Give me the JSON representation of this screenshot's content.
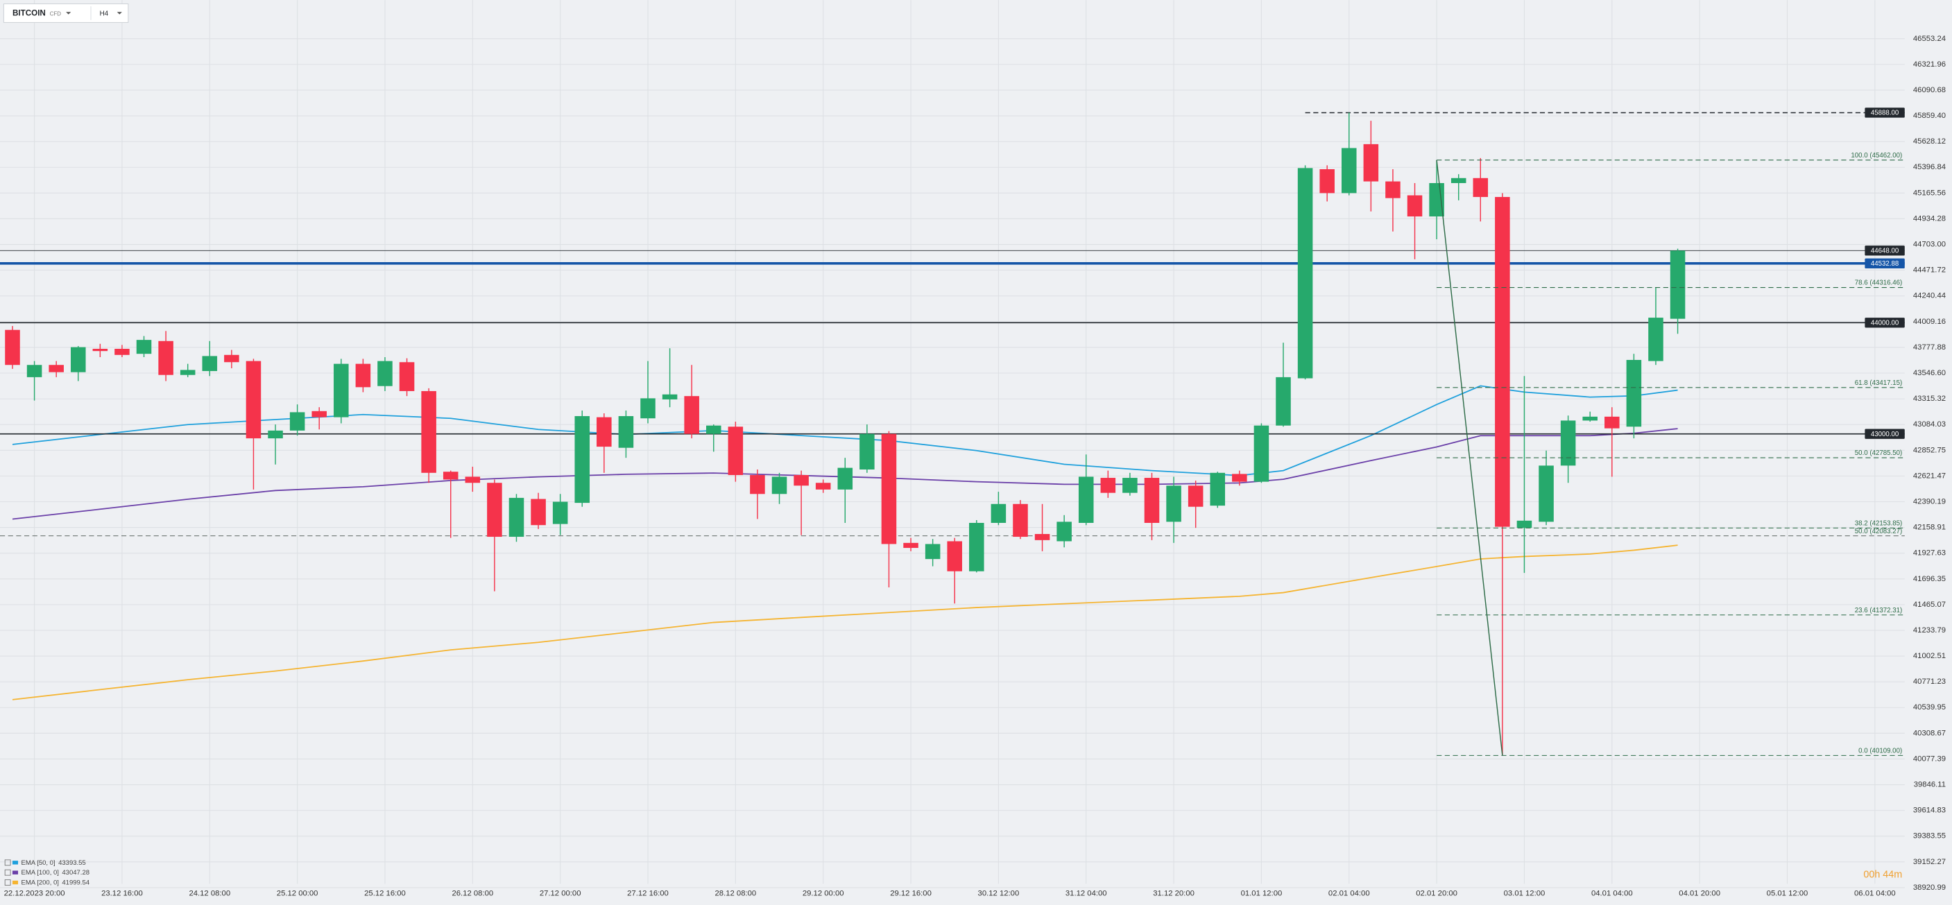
{
  "toolbar": {
    "symbol": "BITCOIN",
    "market": "CFD",
    "timeframe": "H4"
  },
  "timer": "00h 44m",
  "chart_data": {
    "type": "candlestick",
    "x": [
      0,
      1,
      2,
      3,
      4,
      5,
      6,
      7,
      8,
      9,
      10,
      11,
      12,
      13,
      14,
      15,
      16,
      17,
      18,
      19,
      20,
      21,
      22,
      23,
      24,
      25,
      26,
      27,
      28,
      29,
      30,
      31,
      32,
      33,
      34,
      35,
      36,
      37,
      38,
      39,
      40,
      41,
      42,
      43,
      44,
      45,
      46,
      47,
      48,
      49,
      50,
      51,
      52,
      53,
      54,
      55,
      56,
      57,
      58,
      59,
      60,
      61,
      62,
      63,
      64,
      65,
      66,
      67,
      68,
      69,
      70,
      71,
      72,
      73,
      74,
      75,
      76
    ],
    "open": [
      43935,
      43510,
      43620,
      43555,
      43765,
      43765,
      43720,
      43835,
      43530,
      43565,
      43710,
      43655,
      42960,
      43030,
      43205,
      43150,
      43630,
      43430,
      43645,
      43385,
      42660,
      42615,
      42560,
      42075,
      42415,
      42190,
      42380,
      43150,
      42875,
      43140,
      43310,
      43340,
      43000,
      43065,
      42630,
      42460,
      42630,
      42560,
      42500,
      42680,
      43000,
      42020,
      41875,
      42035,
      41765,
      42200,
      42370,
      42100,
      42035,
      42200,
      42605,
      42470,
      42605,
      42210,
      42535,
      42355,
      42640,
      42570,
      43075,
      43500,
      45380,
      45165,
      45605,
      45270,
      45145,
      44955,
      45255,
      45300,
      45130,
      42155,
      42210,
      42715,
      43120,
      43155,
      43065,
      43655,
      44035
    ],
    "high": [
      43970,
      43655,
      43655,
      43790,
      43810,
      43800,
      43880,
      43925,
      43630,
      43835,
      43755,
      43675,
      43085,
      43265,
      43240,
      43675,
      43675,
      43690,
      43680,
      43410,
      42670,
      42705,
      42590,
      42460,
      42470,
      42460,
      43210,
      43185,
      43210,
      43655,
      43770,
      43620,
      43085,
      43110,
      42680,
      42650,
      42670,
      42590,
      42785,
      43085,
      43025,
      42065,
      42055,
      42065,
      42225,
      42480,
      42405,
      42370,
      42270,
      42815,
      42670,
      42650,
      42650,
      42615,
      42580,
      42660,
      42670,
      43095,
      43820,
      45415,
      45415,
      45888,
      45815,
      45380,
      45255,
      45462,
      45335,
      45480,
      45165,
      43520,
      42850,
      43165,
      43200,
      43240,
      43720,
      44315,
      44665
    ],
    "low": [
      43585,
      43300,
      43510,
      43475,
      43690,
      43690,
      43690,
      43475,
      43510,
      43520,
      43590,
      42500,
      42725,
      42985,
      43040,
      43095,
      43375,
      43385,
      43340,
      42560,
      42065,
      42480,
      41585,
      42030,
      42145,
      42090,
      42345,
      42650,
      42785,
      43095,
      43240,
      42960,
      42840,
      42570,
      42235,
      42370,
      42090,
      42470,
      42200,
      42650,
      41620,
      41945,
      41810,
      41475,
      41755,
      42180,
      42055,
      41945,
      41980,
      42180,
      42425,
      42445,
      42045,
      42020,
      42155,
      42335,
      42535,
      42560,
      43065,
      43490,
      45090,
      45145,
      45000,
      44820,
      44570,
      44750,
      45100,
      44910,
      40109,
      41750,
      42180,
      42560,
      43110,
      42615,
      42960,
      43620,
      43900
    ],
    "close": [
      43620,
      43620,
      43555,
      43780,
      43745,
      43710,
      43845,
      43530,
      43575,
      43700,
      43645,
      42960,
      43030,
      43195,
      43150,
      43630,
      43420,
      43655,
      43385,
      42650,
      42590,
      42560,
      42075,
      42425,
      42180,
      42390,
      43160,
      42885,
      43160,
      43320,
      43355,
      43000,
      43075,
      42630,
      42460,
      42615,
      42535,
      42500,
      42695,
      43000,
      42010,
      41975,
      42010,
      41765,
      42200,
      42370,
      42075,
      42045,
      42210,
      42615,
      42470,
      42605,
      42200,
      42535,
      42345,
      42650,
      42570,
      43075,
      43510,
      45390,
      45165,
      45570,
      45270,
      45120,
      44955,
      45255,
      45300,
      45130,
      42165,
      42220,
      42715,
      43120,
      43155,
      43050,
      43665,
      44045,
      44648
    ],
    "up_color": "#26a96c",
    "down_color": "#f5334b",
    "series": [
      {
        "name": "EMA [50, 0]",
        "color": "#1ea0dc",
        "x": [
          0,
          4,
          8,
          12,
          16,
          20,
          24,
          28,
          32,
          36,
          40,
          44,
          48,
          52,
          56,
          58,
          62,
          65,
          67,
          69,
          72,
          74,
          76
        ],
        "values": [
          42905,
          42995,
          43084,
          43129,
          43174,
          43140,
          43040,
          42995,
          43030,
          42985,
          42940,
          42850,
          42727,
          42670,
          42626,
          42670,
          42985,
          43264,
          43432,
          43376,
          43331,
          43342,
          43393.55
        ]
      },
      {
        "name": "EMA [100, 0]",
        "color": "#6a3fa8",
        "x": [
          0,
          4,
          8,
          12,
          16,
          20,
          24,
          28,
          32,
          36,
          40,
          44,
          48,
          52,
          56,
          58,
          62,
          65,
          67,
          69,
          72,
          74,
          76
        ],
        "values": [
          42234,
          42323,
          42413,
          42491,
          42525,
          42581,
          42614,
          42637,
          42648,
          42626,
          42603,
          42570,
          42547,
          42547,
          42559,
          42592,
          42760,
          42883,
          42984,
          42984,
          42984,
          43006,
          43047.28
        ]
      },
      {
        "name": "EMA [200, 0]",
        "color": "#f5b431",
        "x": [
          0,
          4,
          8,
          12,
          16,
          20,
          24,
          28,
          32,
          36,
          40,
          44,
          48,
          52,
          56,
          58,
          62,
          65,
          67,
          69,
          72,
          74,
          76
        ],
        "values": [
          40611,
          40701,
          40790,
          40868,
          40958,
          41058,
          41126,
          41215,
          41305,
          41350,
          41394,
          41439,
          41473,
          41506,
          41540,
          41573,
          41708,
          41808,
          41876,
          41898,
          41920,
          41954,
          41999.54
        ]
      }
    ],
    "levels": [
      {
        "value": 45888,
        "label": "45888.00",
        "color": "#23282e",
        "style": "dashed",
        "boxed": true
      },
      {
        "value": 44648,
        "label": "44648.00",
        "color": "#23282e",
        "style": "thin",
        "boxed": true
      },
      {
        "value": 44532.88,
        "color": "#1656a8",
        "style": "thick",
        "boxed": true
      },
      {
        "value": 44000,
        "label": "44000.00",
        "color": "#23282e",
        "style": "solid",
        "boxed": true
      },
      {
        "value": 43000,
        "label": "43000.00",
        "color": "#23282e",
        "style": "solid",
        "boxed": true
      },
      {
        "value": 42083.27,
        "label": "50.0 (42083.27)",
        "color": "#4a5550",
        "style": "dashed",
        "boxed": false
      }
    ],
    "fib_color": "#2d6b47",
    "fib": [
      {
        "value": 45462,
        "label": "100.0 (45462.00)"
      },
      {
        "value": 44316.46,
        "label": "78.6 (44316.46)"
      },
      {
        "value": 43417.15,
        "label": "61.8 (43417.15)"
      },
      {
        "value": 42785.5,
        "label": "50.0 (42785.50)"
      },
      {
        "value": 42153.85,
        "label": "38.2 (42153.85)"
      },
      {
        "value": 41372.31,
        "label": "23.6 (41372.31)"
      },
      {
        "value": 40109,
        "label": "0.0 (40109.00)"
      }
    ],
    "xlim": [
      -0.57,
      86.36
    ],
    "xticks": [
      {
        "value": 1,
        "label": "22.12.2023 20:00"
      },
      {
        "value": 5,
        "label": "23.12 16:00"
      },
      {
        "value": 9,
        "label": "24.12 08:00"
      },
      {
        "value": 13,
        "label": "25.12 00:00"
      },
      {
        "value": 17,
        "label": "25.12 16:00"
      },
      {
        "value": 21,
        "label": "26.12 08:00"
      },
      {
        "value": 25,
        "label": "27.12 00:00"
      },
      {
        "value": 29,
        "label": "27.12 16:00"
      },
      {
        "value": 33,
        "label": "28.12 08:00"
      },
      {
        "value": 37,
        "label": "29.12 00:00"
      },
      {
        "value": 41,
        "label": "29.12 16:00"
      },
      {
        "value": 45,
        "label": "30.12 12:00"
      },
      {
        "value": 49,
        "label": "31.12 04:00"
      },
      {
        "value": 53,
        "label": "31.12 20:00"
      },
      {
        "value": 57,
        "label": "01.01 12:00"
      },
      {
        "value": 61,
        "label": "02.01 04:00"
      },
      {
        "value": 65,
        "label": "02.01 20:00"
      },
      {
        "value": 69,
        "label": "03.01 12:00"
      },
      {
        "value": 73,
        "label": "04.01 04:00"
      },
      {
        "value": 77,
        "label": "04.01 20:00"
      },
      {
        "value": 81,
        "label": "05.01 12:00"
      },
      {
        "value": 85,
        "label": "06.01 04:00"
      }
    ],
    "ylim": [
      38765.5,
      46900.1
    ],
    "yticks": [
      46553.24,
      46321.96,
      46090.68,
      {
        "value": 45859.4,
        "label": "45859.40"
      },
      45628.12,
      45396.84,
      45165.56,
      44934.28,
      {
        "value": 44703,
        "label": "44703.00"
      },
      44471.72,
      44240.44,
      44009.16,
      43777.88,
      {
        "value": 43546.6,
        "label": "43546.60"
      },
      43315.32,
      43084.03,
      42852.75,
      42621.47,
      42390.19,
      42158.91,
      41927.63,
      41696.35,
      41465.07,
      41233.79,
      41002.51,
      40771.23,
      40539.95,
      40308.67,
      40077.39,
      39846.11,
      39614.83,
      39383.55,
      39152.27,
      38920.99
    ],
    "grid": true
  }
}
